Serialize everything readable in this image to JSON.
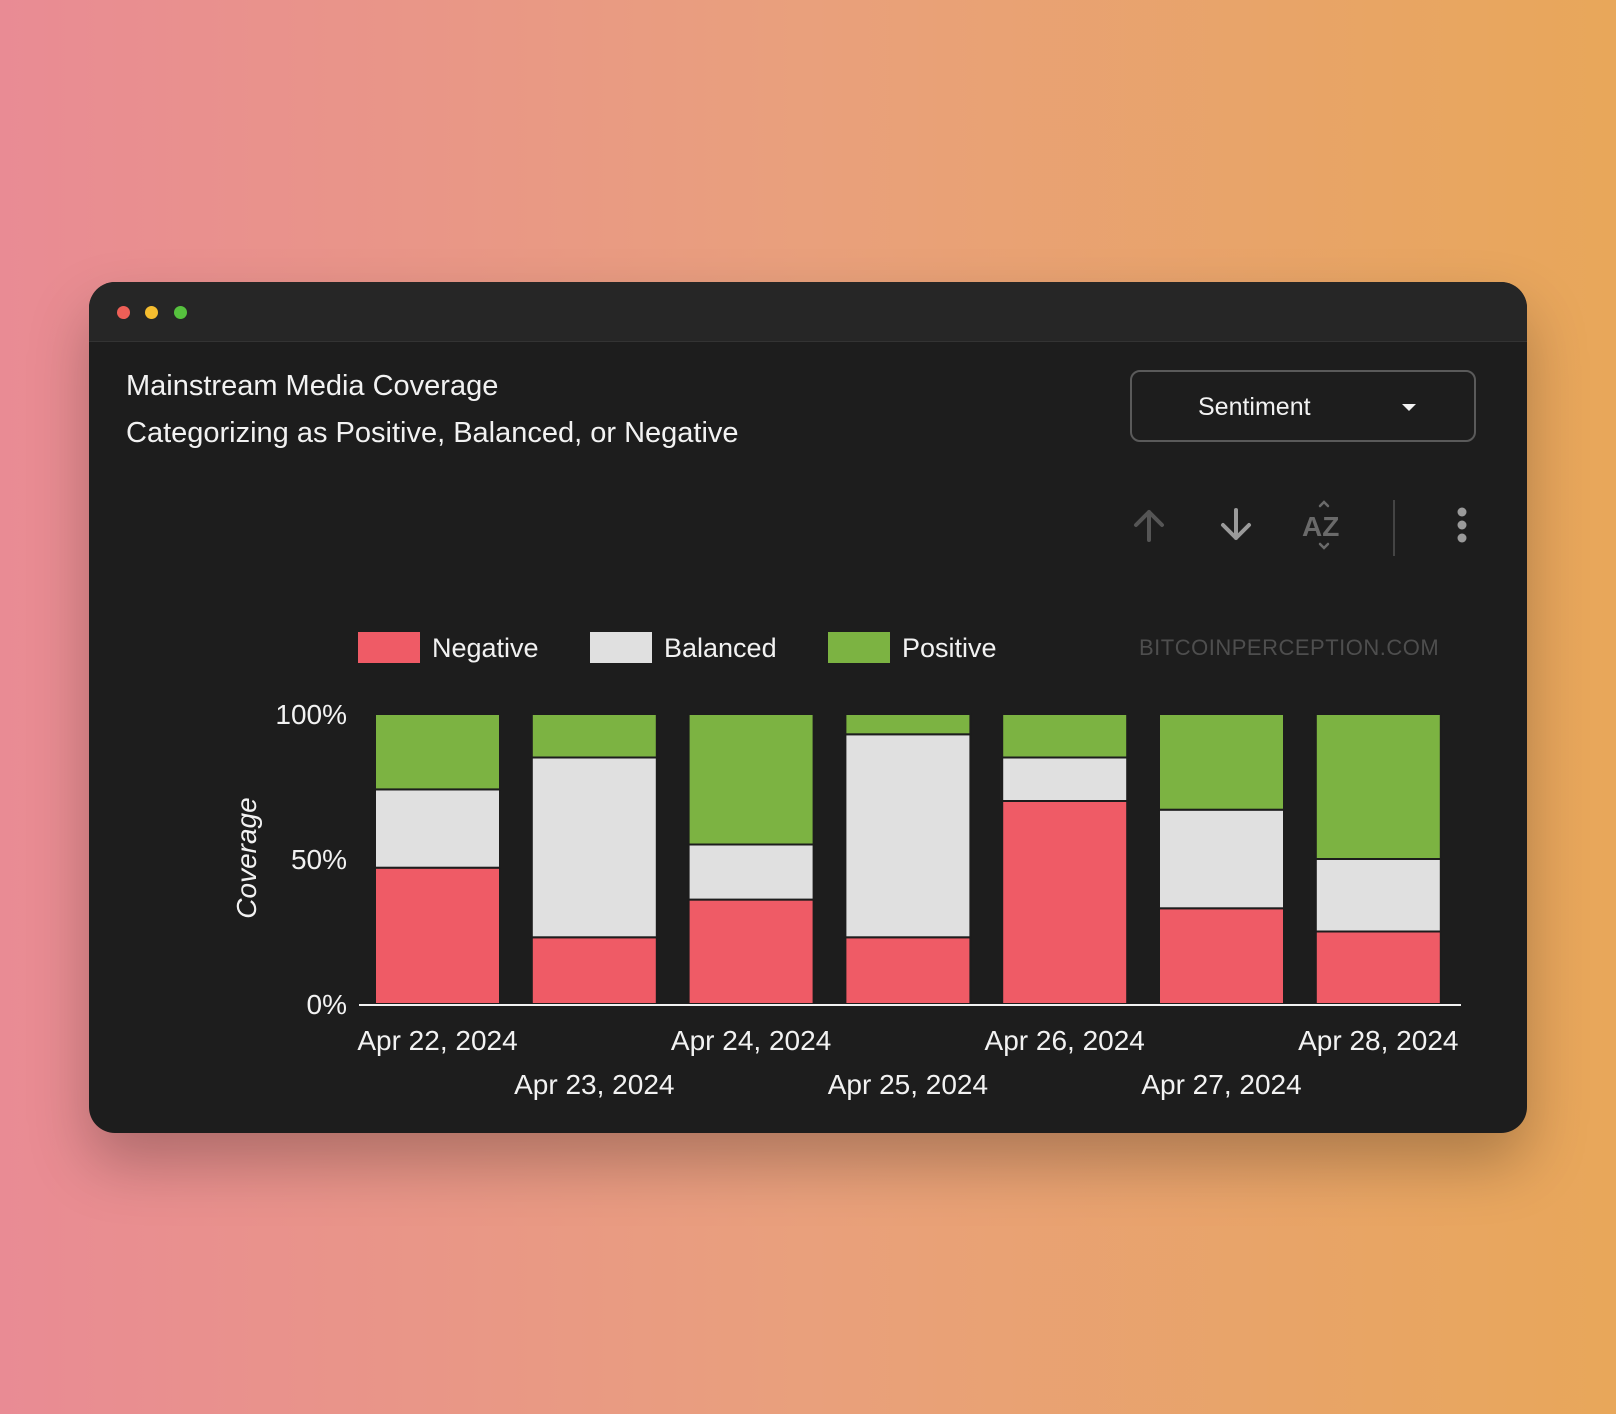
{
  "window": {
    "controls": [
      "close",
      "minimize",
      "maximize"
    ]
  },
  "header": {
    "title": "Mainstream Media Coverage",
    "subtitle": "Categorizing as Positive, Balanced, or Negative"
  },
  "dropdown": {
    "value": "Sentiment",
    "icon": "caret-down-icon"
  },
  "toolbar": {
    "buttons": [
      "sort-ascending-icon",
      "sort-descending-icon",
      "sort-alphabetical-icon",
      "more-options-icon"
    ]
  },
  "watermark": "BITCOINPERCEPTION.COM",
  "colors": {
    "negative": "#ef5b66",
    "balanced": "#e0e0e0",
    "positive": "#7cb342"
  },
  "chart_data": {
    "type": "bar",
    "stacked": true,
    "categories": [
      "Apr 22, 2024",
      "Apr 23, 2024",
      "Apr 24, 2024",
      "Apr 25, 2024",
      "Apr 26, 2024",
      "Apr 27, 2024",
      "Apr 28, 2024"
    ],
    "series": [
      {
        "name": "Negative",
        "values": [
          47,
          23,
          36,
          23,
          70,
          33,
          25
        ]
      },
      {
        "name": "Balanced",
        "values": [
          27,
          62,
          19,
          70,
          15,
          34,
          25
        ]
      },
      {
        "name": "Positive",
        "values": [
          26,
          15,
          45,
          7,
          15,
          33,
          50
        ]
      }
    ],
    "ylabel": "Coverage",
    "yticks": [
      "0%",
      "50%",
      "100%"
    ],
    "ylim": [
      0,
      100
    ],
    "legend": "top"
  }
}
